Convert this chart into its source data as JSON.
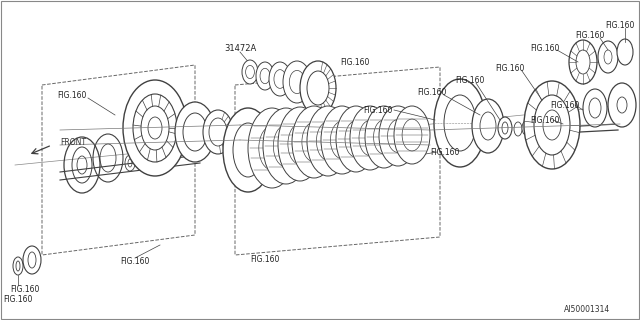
{
  "bg_color": "#ffffff",
  "line_color": "#404040",
  "part_id": "31472A",
  "diagram_id": "AI50001314",
  "fig_label": "FIG.160",
  "front_label": "FRONT"
}
